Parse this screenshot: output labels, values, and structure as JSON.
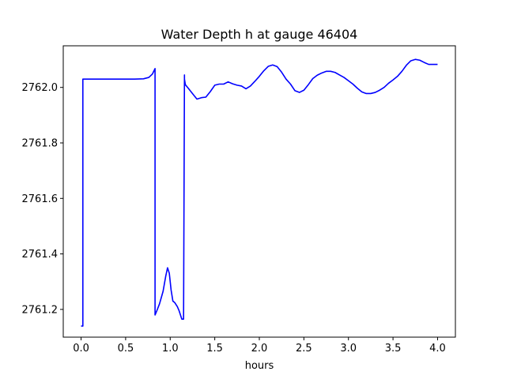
{
  "chart_data": {
    "type": "line",
    "title": "Water Depth h at gauge 46404",
    "xlabel": "hours",
    "ylabel": "",
    "xlim": [
      -0.2,
      4.2
    ],
    "ylim": [
      2761.1,
      2762.15
    ],
    "xticks": [
      0.0,
      0.5,
      1.0,
      1.5,
      2.0,
      2.5,
      3.0,
      3.5,
      4.0
    ],
    "xtick_labels": [
      "0.0",
      "0.5",
      "1.0",
      "1.5",
      "2.0",
      "2.5",
      "3.0",
      "3.5",
      "4.0"
    ],
    "yticks": [
      2761.2,
      2761.4,
      2761.6,
      2761.8,
      2762.0
    ],
    "ytick_labels": [
      "2761.2",
      "2761.4",
      "2761.6",
      "2761.8",
      "2762.0"
    ],
    "grid": false,
    "series": [
      {
        "color": "#0000ff",
        "x": [
          0.0,
          0.02,
          0.02,
          0.03,
          0.2,
          0.4,
          0.6,
          0.7,
          0.76,
          0.8,
          0.83,
          0.83,
          0.85,
          0.88,
          0.92,
          0.95,
          0.97,
          0.99,
          1.01,
          1.03,
          1.05,
          1.08,
          1.1,
          1.13,
          1.15,
          1.16,
          1.16,
          1.17,
          1.2,
          1.25,
          1.3,
          1.35,
          1.4,
          1.45,
          1.5,
          1.55,
          1.6,
          1.65,
          1.7,
          1.75,
          1.8,
          1.85,
          1.9,
          1.95,
          2.0,
          2.05,
          2.1,
          2.15,
          2.2,
          2.25,
          2.3,
          2.35,
          2.4,
          2.45,
          2.5,
          2.55,
          2.6,
          2.65,
          2.7,
          2.75,
          2.8,
          2.85,
          2.9,
          2.95,
          3.0,
          3.05,
          3.1,
          3.15,
          3.2,
          3.25,
          3.3,
          3.35,
          3.4,
          3.45,
          3.5,
          3.55,
          3.6,
          3.65,
          3.7,
          3.75,
          3.8,
          3.85,
          3.9,
          3.95,
          4.0
        ],
        "y": [
          2761.14,
          2761.14,
          2762.03,
          2762.03,
          2762.03,
          2762.03,
          2762.03,
          2762.031,
          2762.036,
          2762.048,
          2762.068,
          2761.18,
          2761.195,
          2761.22,
          2761.265,
          2761.32,
          2761.35,
          2761.33,
          2761.27,
          2761.23,
          2761.225,
          2761.21,
          2761.195,
          2761.165,
          2761.165,
          2762.045,
          2762.03,
          2762.01,
          2761.998,
          2761.978,
          2761.958,
          2761.963,
          2761.965,
          2761.985,
          2762.008,
          2762.012,
          2762.012,
          2762.02,
          2762.013,
          2762.008,
          2762.005,
          2761.995,
          2762.005,
          2762.022,
          2762.04,
          2762.06,
          2762.076,
          2762.081,
          2762.075,
          2762.055,
          2762.03,
          2762.012,
          2761.988,
          2761.982,
          2761.99,
          2762.01,
          2762.032,
          2762.044,
          2762.052,
          2762.058,
          2762.058,
          2762.054,
          2762.045,
          2762.036,
          2762.024,
          2762.012,
          2761.997,
          2761.984,
          2761.978,
          2761.978,
          2761.982,
          2761.99,
          2762.0,
          2762.015,
          2762.027,
          2762.04,
          2762.058,
          2762.08,
          2762.096,
          2762.101,
          2762.098,
          2762.09,
          2762.083,
          2762.083,
          2762.083
        ]
      }
    ]
  }
}
